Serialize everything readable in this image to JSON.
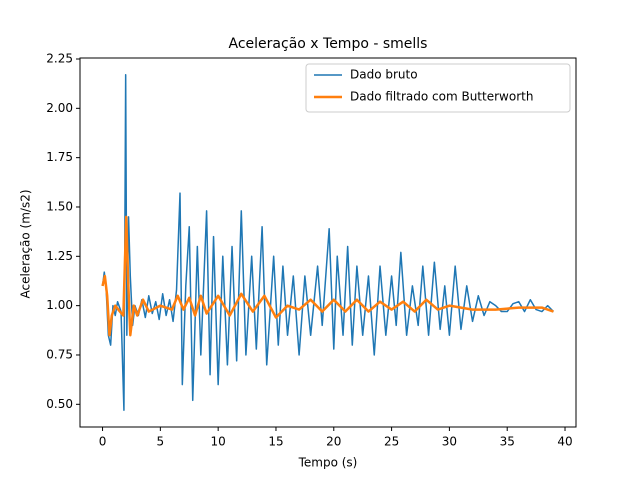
{
  "chart_data": {
    "type": "line",
    "title": "Aceleração x Tempo - smells",
    "xlabel": "Tempo (s)",
    "ylabel": "Aceleração (m/s2)",
    "xlim": [
      -1.95,
      40.95
    ],
    "ylim": [
      0.385,
      2.255
    ],
    "xticks": [
      0,
      5,
      10,
      15,
      20,
      25,
      30,
      35,
      40
    ],
    "yticks": [
      {
        "value": 0.5,
        "label": "0.50"
      },
      {
        "value": 0.75,
        "label": "0.75"
      },
      {
        "value": 1.0,
        "label": "1.00"
      },
      {
        "value": 1.25,
        "label": "1.25"
      },
      {
        "value": 1.5,
        "label": "1.50"
      },
      {
        "value": 1.75,
        "label": "1.75"
      },
      {
        "value": 2.0,
        "label": "2.00"
      },
      {
        "value": 2.25,
        "label": "2.25"
      }
    ],
    "legend": "upper right",
    "series": [
      {
        "name": "Dado bruto",
        "color": "#1f77b4",
        "width": 1.5,
        "x": [
          0,
          0.15,
          0.3,
          0.5,
          0.7,
          0.9,
          1.1,
          1.3,
          1.6,
          1.85,
          1.95,
          2.0,
          2.1,
          2.25,
          2.4,
          2.6,
          2.8,
          3.1,
          3.4,
          3.7,
          4.0,
          4.3,
          4.6,
          4.9,
          5.2,
          5.5,
          5.8,
          6.1,
          6.4,
          6.7,
          6.9,
          7.2,
          7.5,
          7.8,
          8.2,
          8.5,
          9.0,
          9.3,
          9.6,
          10.0,
          10.4,
          10.8,
          11.2,
          11.6,
          12.0,
          12.4,
          12.9,
          13.3,
          13.8,
          14.2,
          14.8,
          15.2,
          15.6,
          16.0,
          16.5,
          17.0,
          17.5,
          18.0,
          18.6,
          19.0,
          19.6,
          20.0,
          20.3,
          20.8,
          21.2,
          21.6,
          22.0,
          22.5,
          23.0,
          23.5,
          24.0,
          24.5,
          25.0,
          25.4,
          25.8,
          26.3,
          26.8,
          27.3,
          27.7,
          28.2,
          28.7,
          29.2,
          29.6,
          30.0,
          30.5,
          31.0,
          31.5,
          32.0,
          32.5,
          33.0,
          33.5,
          34.0,
          34.5,
          35.0,
          35.5,
          36.0,
          36.5,
          37.0,
          37.5,
          38.0,
          38.5,
          39.0
        ],
        "values": [
          1.1,
          1.17,
          1.1,
          0.85,
          0.8,
          1.0,
          0.95,
          1.02,
          0.97,
          0.47,
          1.6,
          2.17,
          0.85,
          1.45,
          1.15,
          0.9,
          1.0,
          0.95,
          1.03,
          0.94,
          1.05,
          0.96,
          1.02,
          0.93,
          1.06,
          0.95,
          1.03,
          0.92,
          1.08,
          1.57,
          0.6,
          1.1,
          1.4,
          0.52,
          1.3,
          0.75,
          1.48,
          0.65,
          1.35,
          0.6,
          1.25,
          0.7,
          1.3,
          0.72,
          1.48,
          0.75,
          1.25,
          0.78,
          1.4,
          0.7,
          1.25,
          0.8,
          1.2,
          0.85,
          1.15,
          0.75,
          1.15,
          0.85,
          1.2,
          0.9,
          1.39,
          0.78,
          1.25,
          0.85,
          1.3,
          0.8,
          1.2,
          0.85,
          1.15,
          0.75,
          1.2,
          0.85,
          1.15,
          0.9,
          1.27,
          0.85,
          1.1,
          0.9,
          1.2,
          0.85,
          1.22,
          0.88,
          1.1,
          0.85,
          1.2,
          0.88,
          1.1,
          0.92,
          1.05,
          0.95,
          1.02,
          1.0,
          0.97,
          0.97,
          1.01,
          1.02,
          0.97,
          1.03,
          0.98,
          0.97,
          1.0,
          0.97
        ]
      },
      {
        "name": "Dado filtrado com Butterworth",
        "color": "#ff7f0e",
        "width": 2.5,
        "x": [
          0,
          0.2,
          0.4,
          0.6,
          0.8,
          1.1,
          1.5,
          1.8,
          2.05,
          2.2,
          2.4,
          2.7,
          3.0,
          3.5,
          4.0,
          5.0,
          6.0,
          6.5,
          7.0,
          7.5,
          8.0,
          8.5,
          9.0,
          10.0,
          11.0,
          12.0,
          13.0,
          14.0,
          15.0,
          16.0,
          17.0,
          18.0,
          19.0,
          20.0,
          21.0,
          22.0,
          23.0,
          24.0,
          25.0,
          26.0,
          27.0,
          28.0,
          29.0,
          30.0,
          32.0,
          34.0,
          36.0,
          38.0,
          39.0
        ],
        "values": [
          1.1,
          1.15,
          1.05,
          0.85,
          0.95,
          1.0,
          0.97,
          0.95,
          1.45,
          1.15,
          0.85,
          1.0,
          0.95,
          1.03,
          0.97,
          1.0,
          0.98,
          1.05,
          0.98,
          1.04,
          0.95,
          1.05,
          0.96,
          1.05,
          0.95,
          1.06,
          0.97,
          1.05,
          0.94,
          1.0,
          0.98,
          1.03,
          0.97,
          1.03,
          0.97,
          1.03,
          0.97,
          1.02,
          0.98,
          1.02,
          0.97,
          1.03,
          0.98,
          1.0,
          0.98,
          0.98,
          0.99,
          0.99,
          0.97
        ]
      }
    ]
  }
}
